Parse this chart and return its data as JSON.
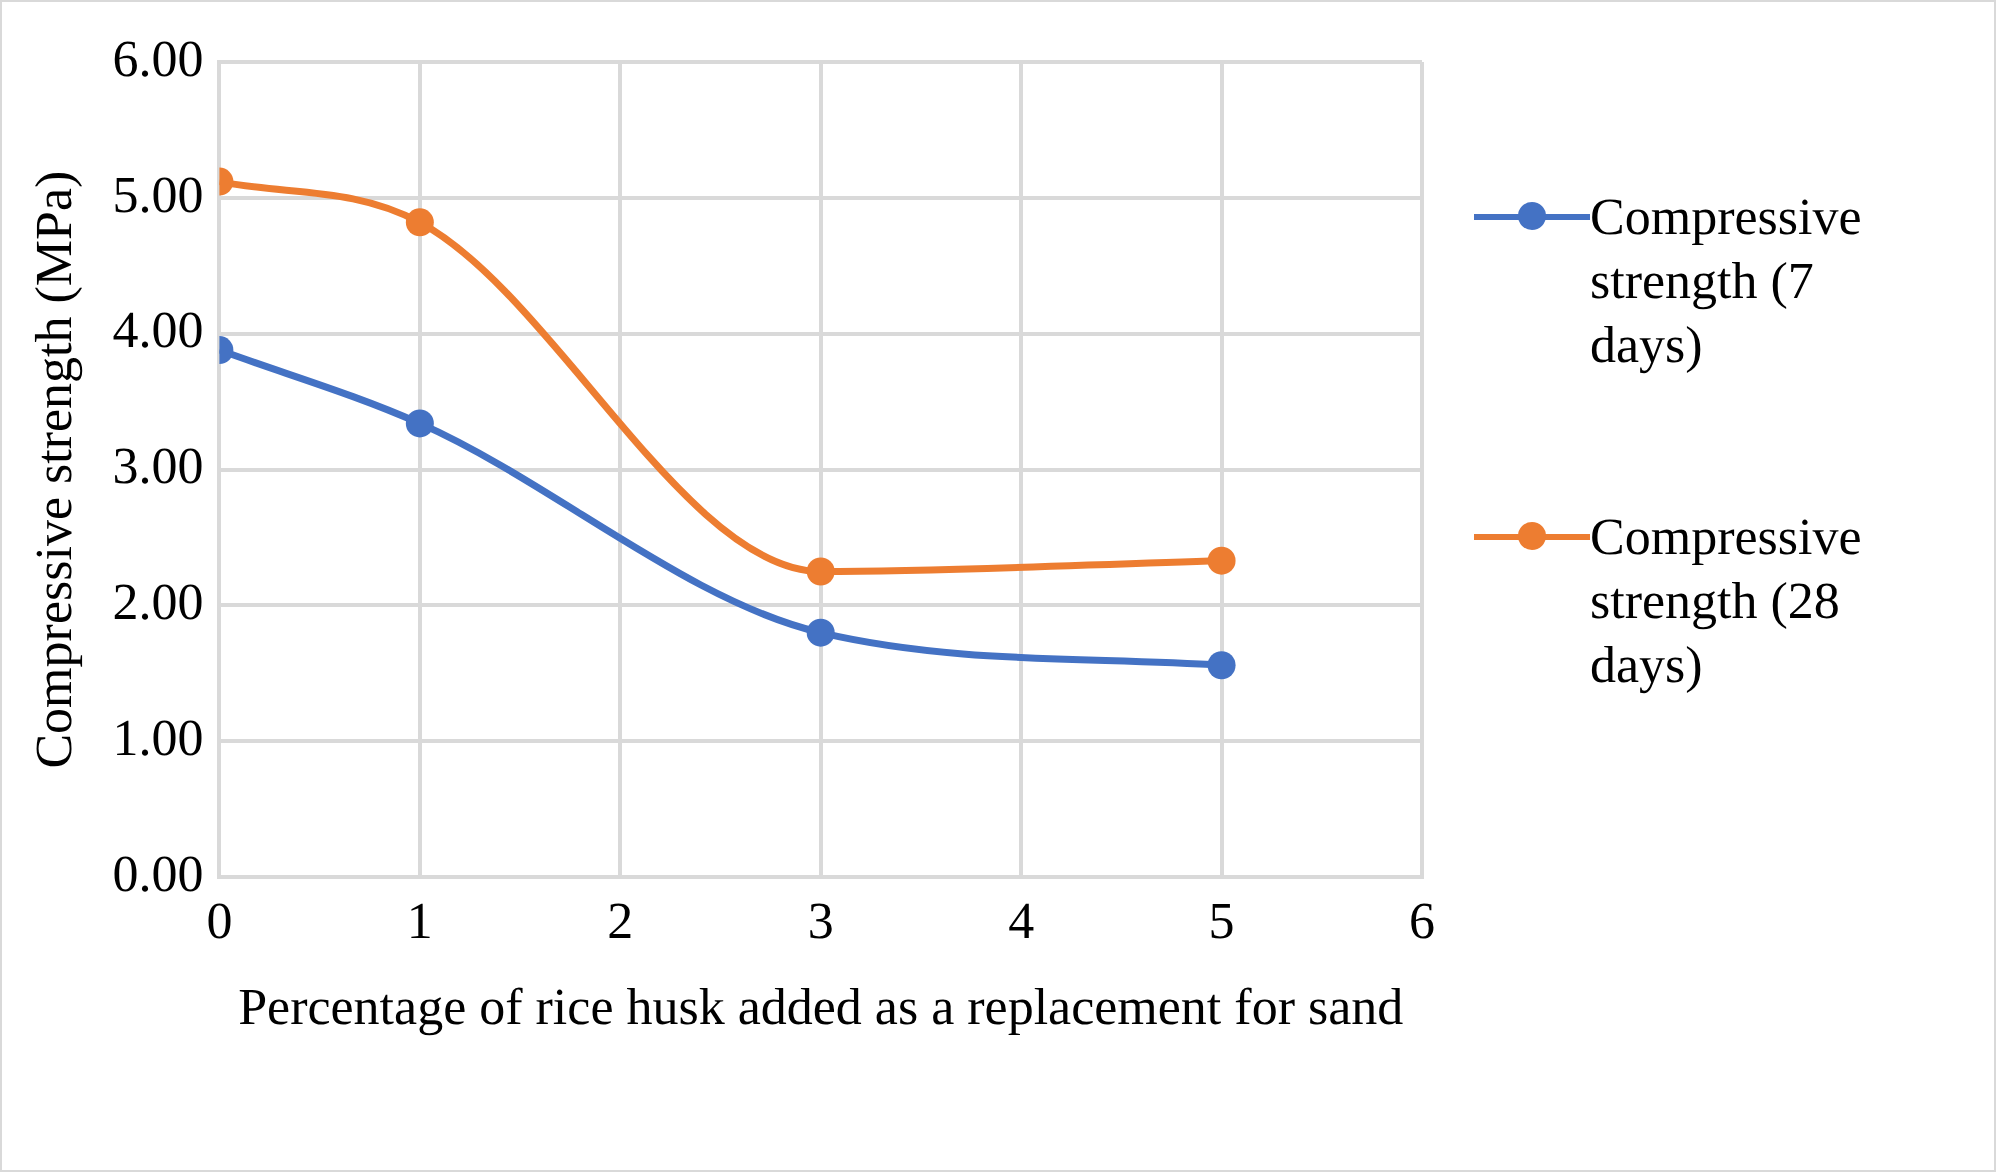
{
  "chart_data": {
    "type": "line",
    "xlabel": "Percentage of rice husk added as a replacement for sand",
    "ylabel": "Compressive strength (MPa)",
    "x": [
      0,
      1,
      3,
      5
    ],
    "series": [
      {
        "name": "Compressive strength (7 days)",
        "color": "#4472c4",
        "values": [
          3.88,
          3.34,
          1.8,
          1.56
        ]
      },
      {
        "name": "Compressive strength (28 days)",
        "color": "#ed7d31",
        "values": [
          5.12,
          4.82,
          2.25,
          2.33
        ]
      }
    ],
    "xlim": [
      0,
      6
    ],
    "xticks": [
      0,
      1,
      2,
      3,
      4,
      5,
      6
    ],
    "ylim": [
      0,
      6
    ],
    "yticks": [
      {
        "value": 0,
        "label": "0.00"
      },
      {
        "value": 1,
        "label": "1.00"
      },
      {
        "value": 2,
        "label": "2.00"
      },
      {
        "value": 3,
        "label": "3.00"
      },
      {
        "value": 4,
        "label": "4.00"
      },
      {
        "value": 5,
        "label": "5.00"
      },
      {
        "value": 6,
        "label": "6.00"
      }
    ],
    "grid": true,
    "legend": "right",
    "marker": "circle",
    "line_style": "solid"
  }
}
